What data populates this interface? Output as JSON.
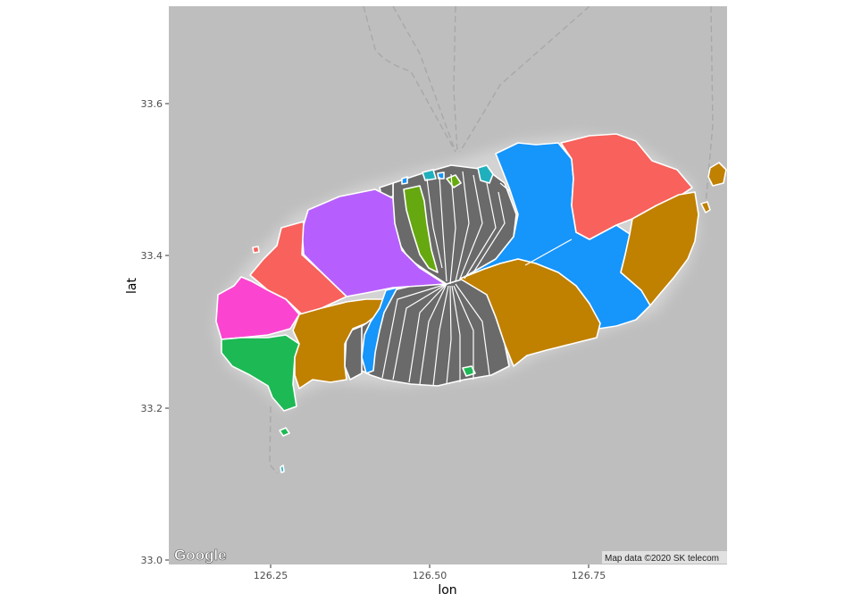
{
  "map": {
    "x_axis_title": "lon",
    "y_axis_title": "lat",
    "x_ticks": [
      "126.25",
      "126.50",
      "126.75"
    ],
    "y_ticks": [
      "33.0",
      "33.2",
      "33.4",
      "33.6"
    ],
    "x_range": [
      126.09,
      126.98
    ],
    "y_range": [
      32.99,
      33.72
    ],
    "logo_text": "Google",
    "attribution": "Map data ©2020 SK telecom",
    "colors": {
      "background": "#bebebe",
      "land_halo": "#d6d6d6",
      "border": "#ffffff",
      "grey_region": "#6a6a6a",
      "red": "#f8615c",
      "purple": "#b75ffe",
      "pink": "#fb45d0",
      "green": "#1db954",
      "gold": "#c08000",
      "blue": "#1695fb",
      "lime": "#66a80f",
      "teal": "#20b0bd"
    }
  }
}
